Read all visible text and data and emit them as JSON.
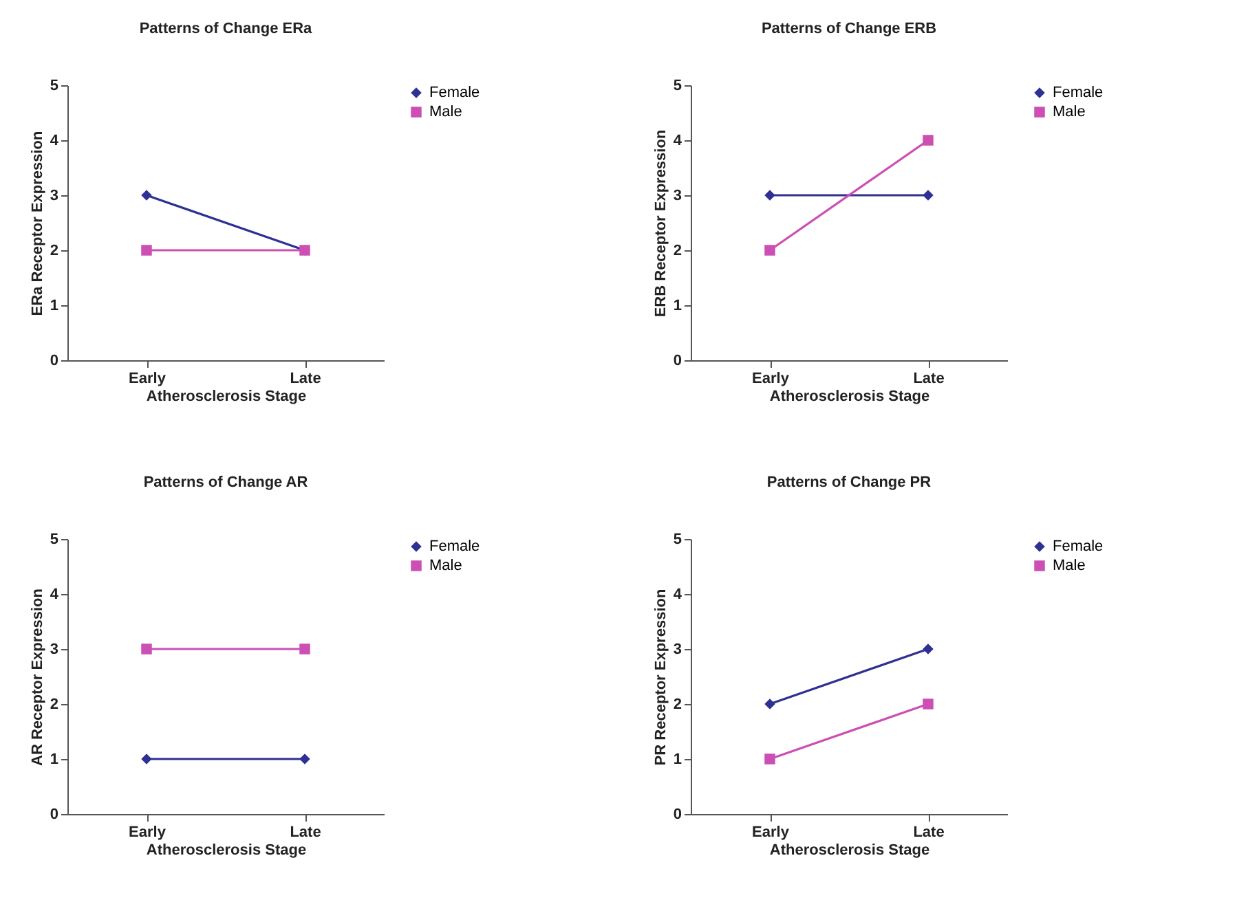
{
  "chart_data": [
    {
      "type": "line",
      "title": "Patterns of Change ERa",
      "xlabel": "Atherosclerosis Stage",
      "ylabel": "ERa Receptor Expression",
      "categories": [
        "Early",
        "Late"
      ],
      "ylim": [
        0,
        5
      ],
      "yticks": [
        0,
        1,
        2,
        3,
        4,
        5
      ],
      "grid": false,
      "legend": "right",
      "line_style": "solid",
      "series": [
        {
          "name": "Female",
          "color": "#2e3192",
          "marker": "diamond",
          "values": [
            3,
            2
          ]
        },
        {
          "name": "Male",
          "color": "#cc4fb4",
          "marker": "square",
          "values": [
            2,
            2
          ]
        }
      ]
    },
    {
      "type": "line",
      "title": "Patterns of Change ERB",
      "xlabel": "Atherosclerosis Stage",
      "ylabel": "ERB  Receptor Expression",
      "categories": [
        "Early",
        "Late"
      ],
      "ylim": [
        0,
        5
      ],
      "yticks": [
        0,
        1,
        2,
        3,
        4,
        5
      ],
      "grid": false,
      "legend": "right",
      "line_style": "solid",
      "series": [
        {
          "name": "Female",
          "color": "#2e3192",
          "marker": "diamond",
          "values": [
            3,
            3
          ]
        },
        {
          "name": "Male",
          "color": "#cc4fb4",
          "marker": "square",
          "values": [
            2,
            4
          ]
        }
      ]
    },
    {
      "type": "line",
      "title": "Patterns of Change AR",
      "xlabel": "Atherosclerosis Stage",
      "ylabel": "AR Receptor Expression",
      "categories": [
        "Early",
        "Late"
      ],
      "ylim": [
        0,
        5
      ],
      "yticks": [
        0,
        1,
        2,
        3,
        4,
        5
      ],
      "grid": false,
      "legend": "right",
      "line_style": "solid",
      "series": [
        {
          "name": "Female",
          "color": "#2e3192",
          "marker": "diamond",
          "values": [
            1,
            1
          ]
        },
        {
          "name": "Male",
          "color": "#cc4fb4",
          "marker": "square",
          "values": [
            3,
            3
          ]
        }
      ]
    },
    {
      "type": "line",
      "title": "Patterns of Change PR",
      "xlabel": "Atherosclerosis Stage",
      "ylabel": "PR Receptor Expression",
      "categories": [
        "Early",
        "Late"
      ],
      "ylim": [
        0,
        5
      ],
      "yticks": [
        0,
        1,
        2,
        3,
        4,
        5
      ],
      "grid": false,
      "legend": "right",
      "line_style": "solid",
      "series": [
        {
          "name": "Female",
          "color": "#2e3192",
          "marker": "diamond",
          "values": [
            2,
            3
          ]
        },
        {
          "name": "Male",
          "color": "#cc4fb4",
          "marker": "square",
          "values": [
            1,
            2
          ]
        }
      ]
    }
  ]
}
